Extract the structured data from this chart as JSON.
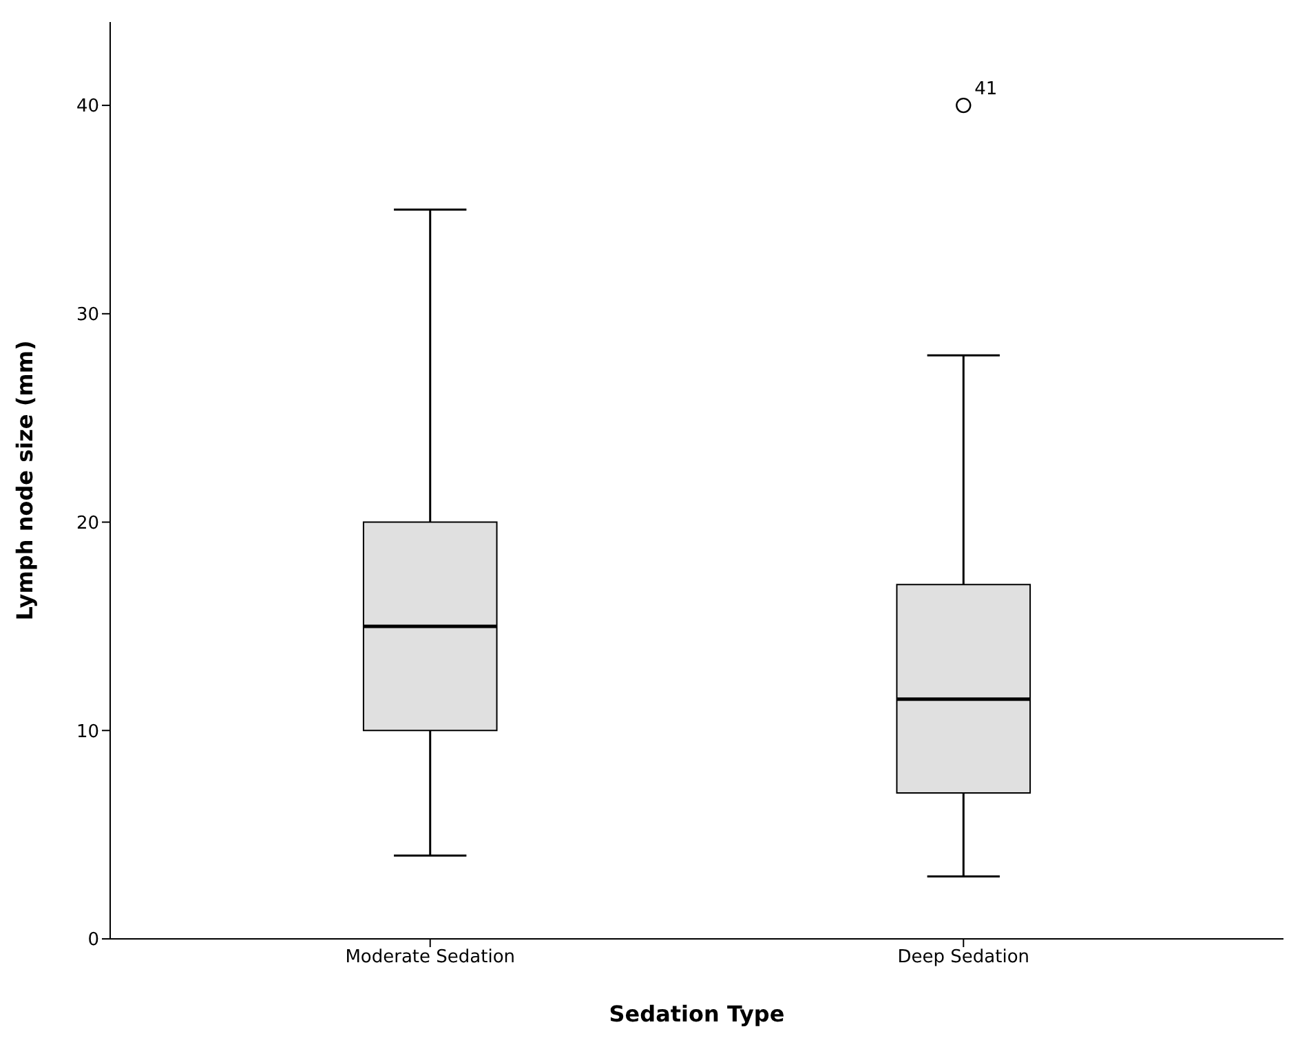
{
  "chart_data": {
    "type": "box",
    "xlabel": "Sedation Type",
    "ylabel": "Lymph node size (mm)",
    "categories": [
      "Moderate Sedation",
      "Deep Sedation"
    ],
    "series": [
      {
        "color": "#e0e0e0",
        "boxes": [
          {
            "low": 4,
            "q1": 10,
            "median": 15,
            "q3": 20,
            "high": 35
          },
          {
            "low": 3,
            "q1": 7,
            "median": 11.5,
            "q3": 17,
            "high": 28,
            "outliers": [
              40
            ]
          }
        ]
      }
    ],
    "ylim": [
      0,
      44
    ],
    "yticks": [
      0,
      10,
      20,
      30,
      40
    ],
    "annotations": [
      "41"
    ]
  }
}
